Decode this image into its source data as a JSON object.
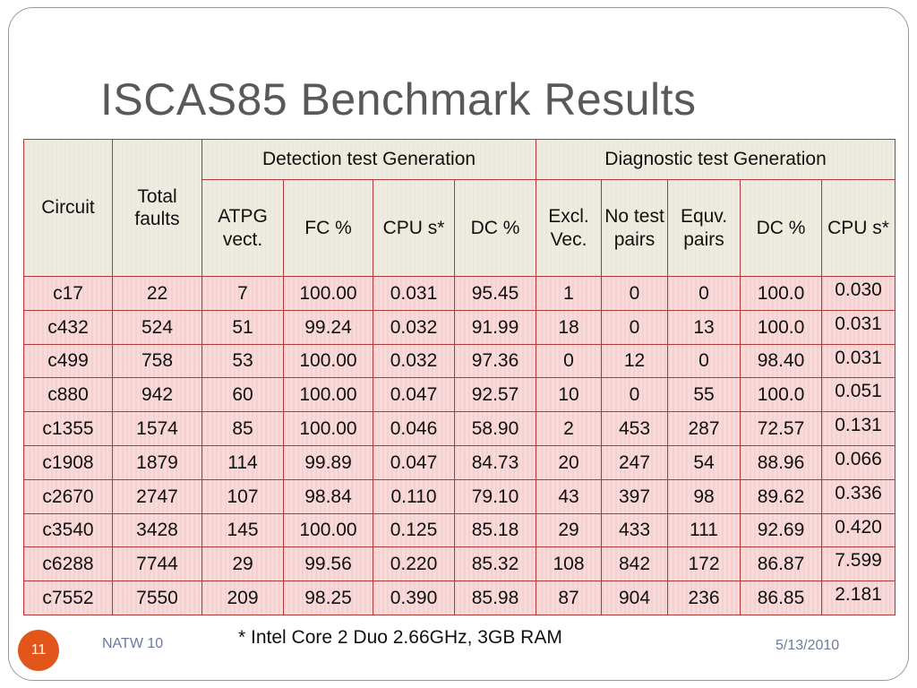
{
  "title": "ISCAS85 Benchmark Results",
  "table": {
    "group_headers": {
      "circuit": "Circuit",
      "total_faults": "Total faults",
      "detection": "Detection test Generation",
      "diagnostic": "Diagnostic test Generation"
    },
    "sub_headers": [
      "ATPG vect.",
      "FC %",
      "CPU s*",
      "DC %",
      "Excl. Vec.",
      "No test pairs",
      "Equv. pairs",
      "DC %",
      "CPU s*"
    ],
    "rows": [
      [
        "c17",
        "22",
        "7",
        "100.00",
        "0.031",
        "95.45",
        "1",
        "0",
        "0",
        "100.0",
        "0.030"
      ],
      [
        "c432",
        "524",
        "51",
        "99.24",
        "0.032",
        "91.99",
        "18",
        "0",
        "13",
        "100.0",
        "0.031"
      ],
      [
        "c499",
        "758",
        "53",
        "100.00",
        "0.032",
        "97.36",
        "0",
        "12",
        "0",
        "98.40",
        "0.031"
      ],
      [
        "c880",
        "942",
        "60",
        "100.00",
        "0.047",
        "92.57",
        "10",
        "0",
        "55",
        "100.0",
        "0.051"
      ],
      [
        "c1355",
        "1574",
        "85",
        "100.00",
        "0.046",
        "58.90",
        "2",
        "453",
        "287",
        "72.57",
        "0.131"
      ],
      [
        "c1908",
        "1879",
        "114",
        "99.89",
        "0.047",
        "84.73",
        "20",
        "247",
        "54",
        "88.96",
        "0.066"
      ],
      [
        "c2670",
        "2747",
        "107",
        "98.84",
        "0.110",
        "79.10",
        "43",
        "397",
        "98",
        "89.62",
        "0.336"
      ],
      [
        "c3540",
        "3428",
        "145",
        "100.00",
        "0.125",
        "85.18",
        "29",
        "433",
        "111",
        "92.69",
        "0.420"
      ],
      [
        "c6288",
        "7744",
        "29",
        "99.56",
        "0.220",
        "85.32",
        "108",
        "842",
        "172",
        "86.87",
        "7.599"
      ],
      [
        "c7552",
        "7550",
        "209",
        "98.25",
        "0.390",
        "85.98",
        "87",
        "904",
        "236",
        "86.85",
        "2.181"
      ]
    ]
  },
  "footnote": "* Intel Core 2 Duo 2.66GHz, 3GB RAM",
  "footer": {
    "page_number": "11",
    "left": "NATW 10",
    "date": "5/13/2010"
  },
  "colors": {
    "title": "#595959",
    "header_bg": "#eeece1",
    "row_bg": "#f8dada",
    "border": "#b03a3a",
    "badge": "#e2561c",
    "footer_text": "#6b7aa0"
  }
}
